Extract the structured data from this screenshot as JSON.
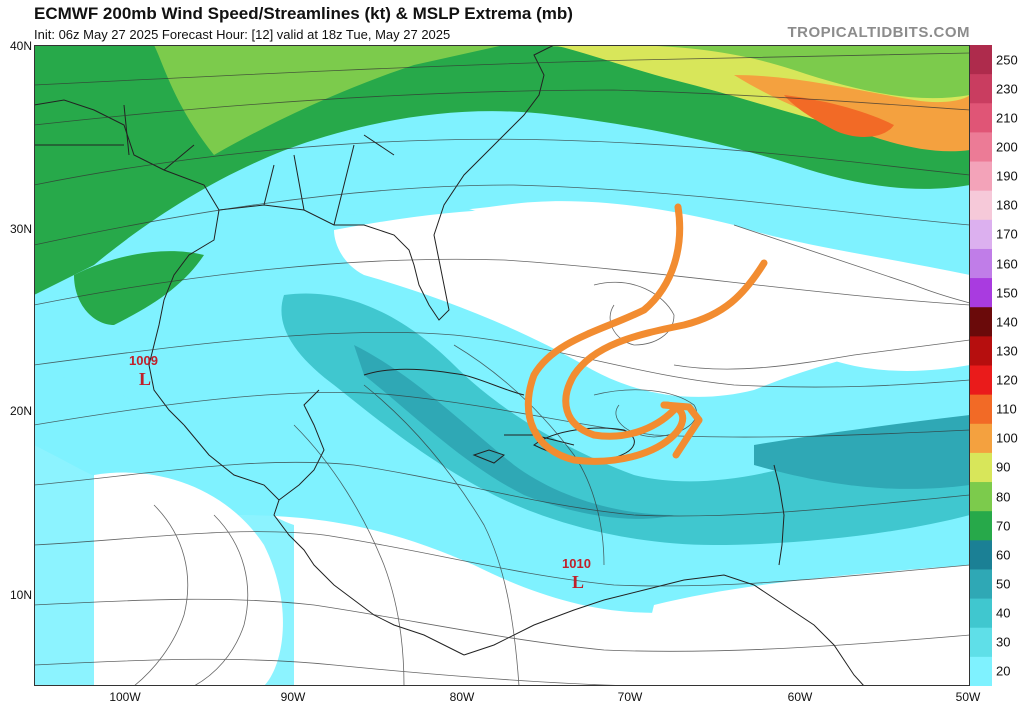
{
  "header": {
    "title": "ECMWF 200mb Wind Speed/Streamlines (kt) & MSLP Extrema (mb)",
    "subtitle": "Init: 06z May 27 2025   Forecast Hour: [12]   valid at 18z Tue, May 27 2025",
    "brand": "TROPICALTIDBITS.COM"
  },
  "axes": {
    "lat_labels": [
      "40N",
      "30N",
      "20N",
      "10N"
    ],
    "lon_labels": [
      "100W",
      "90W",
      "80W",
      "70W",
      "60W",
      "50W"
    ]
  },
  "colorbar": {
    "unit": "kt",
    "labels": [
      "250",
      "230",
      "210",
      "200",
      "190",
      "180",
      "170",
      "160",
      "150",
      "140",
      "130",
      "120",
      "110",
      "100",
      "90",
      "80",
      "70",
      "60",
      "50",
      "40",
      "30",
      "20"
    ],
    "colors": {
      "20": "#7ff2ff",
      "30": "#5fdfe8",
      "40": "#40c7cf",
      "50": "#2fa8b5",
      "60": "#1b8095",
      "70": "#27a94a",
      "80": "#7ccb4c",
      "90": "#d8e65a",
      "100": "#f4a13f",
      "110": "#f26a26",
      "120": "#ea1b1b",
      "130": "#b60e0e",
      "140": "#6a0a0a",
      "150": "#a93be0",
      "160": "#c07de8",
      "170": "#dcb0ef",
      "180": "#f6c9d9",
      "190": "#f3a3b9",
      "200": "#ec7b96",
      "210": "#e05576",
      "230": "#c93d60",
      "250": "#ae2b4c"
    }
  },
  "lows": [
    {
      "pressure": "1009",
      "symbol": "L"
    },
    {
      "pressure": "1010",
      "symbol": "L"
    }
  ],
  "map_colors": {
    "ocean_wind_light": "#7ff2ff",
    "ocean_wind_mid": "#40c7cf",
    "ocean_wind_deep": "#2fa8b5",
    "jet_green": "#27a94a",
    "jet_yellow": "#d8e65a",
    "jet_orange": "#f26a26",
    "annotation": "#f28c30",
    "streamline": "#333333"
  }
}
